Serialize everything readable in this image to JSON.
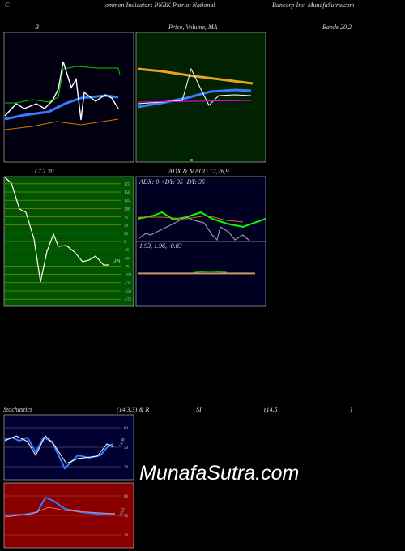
{
  "header": {
    "c": "C",
    "left": "ommon Indicators PNBK Patriot National",
    "right": "Bancorp Inc. MunafaSutra.com"
  },
  "bollinger": {
    "title_left": "B",
    "title_right": "Bands 20,2"
  },
  "price": {
    "title": "Price, Volume, MA"
  },
  "cci": {
    "title": "CCI 20",
    "ticks": [
      175,
      150,
      125,
      100,
      75,
      50,
      25,
      0,
      -25,
      -50,
      -75,
      -100,
      -125,
      -150,
      -175
    ],
    "current": "-69"
  },
  "adx": {
    "title": "ADX  & MACD 12,26,9",
    "readout": "ADX: 0  +DY: 35  -DY: 35"
  },
  "macd": {
    "readout": "1.93,  1.96,  -0.03"
  },
  "stochastics": {
    "title_parts": [
      "Stochastics",
      "(14,3,3) & R",
      "SI",
      "(14,5",
      ")"
    ],
    "ticks": [
      80,
      50,
      20
    ],
    "current": "54.08"
  },
  "rsi": {
    "ticks": [
      80,
      50,
      20
    ],
    "current": "53.05"
  },
  "watermark": "MunafaSutra.com"
}
